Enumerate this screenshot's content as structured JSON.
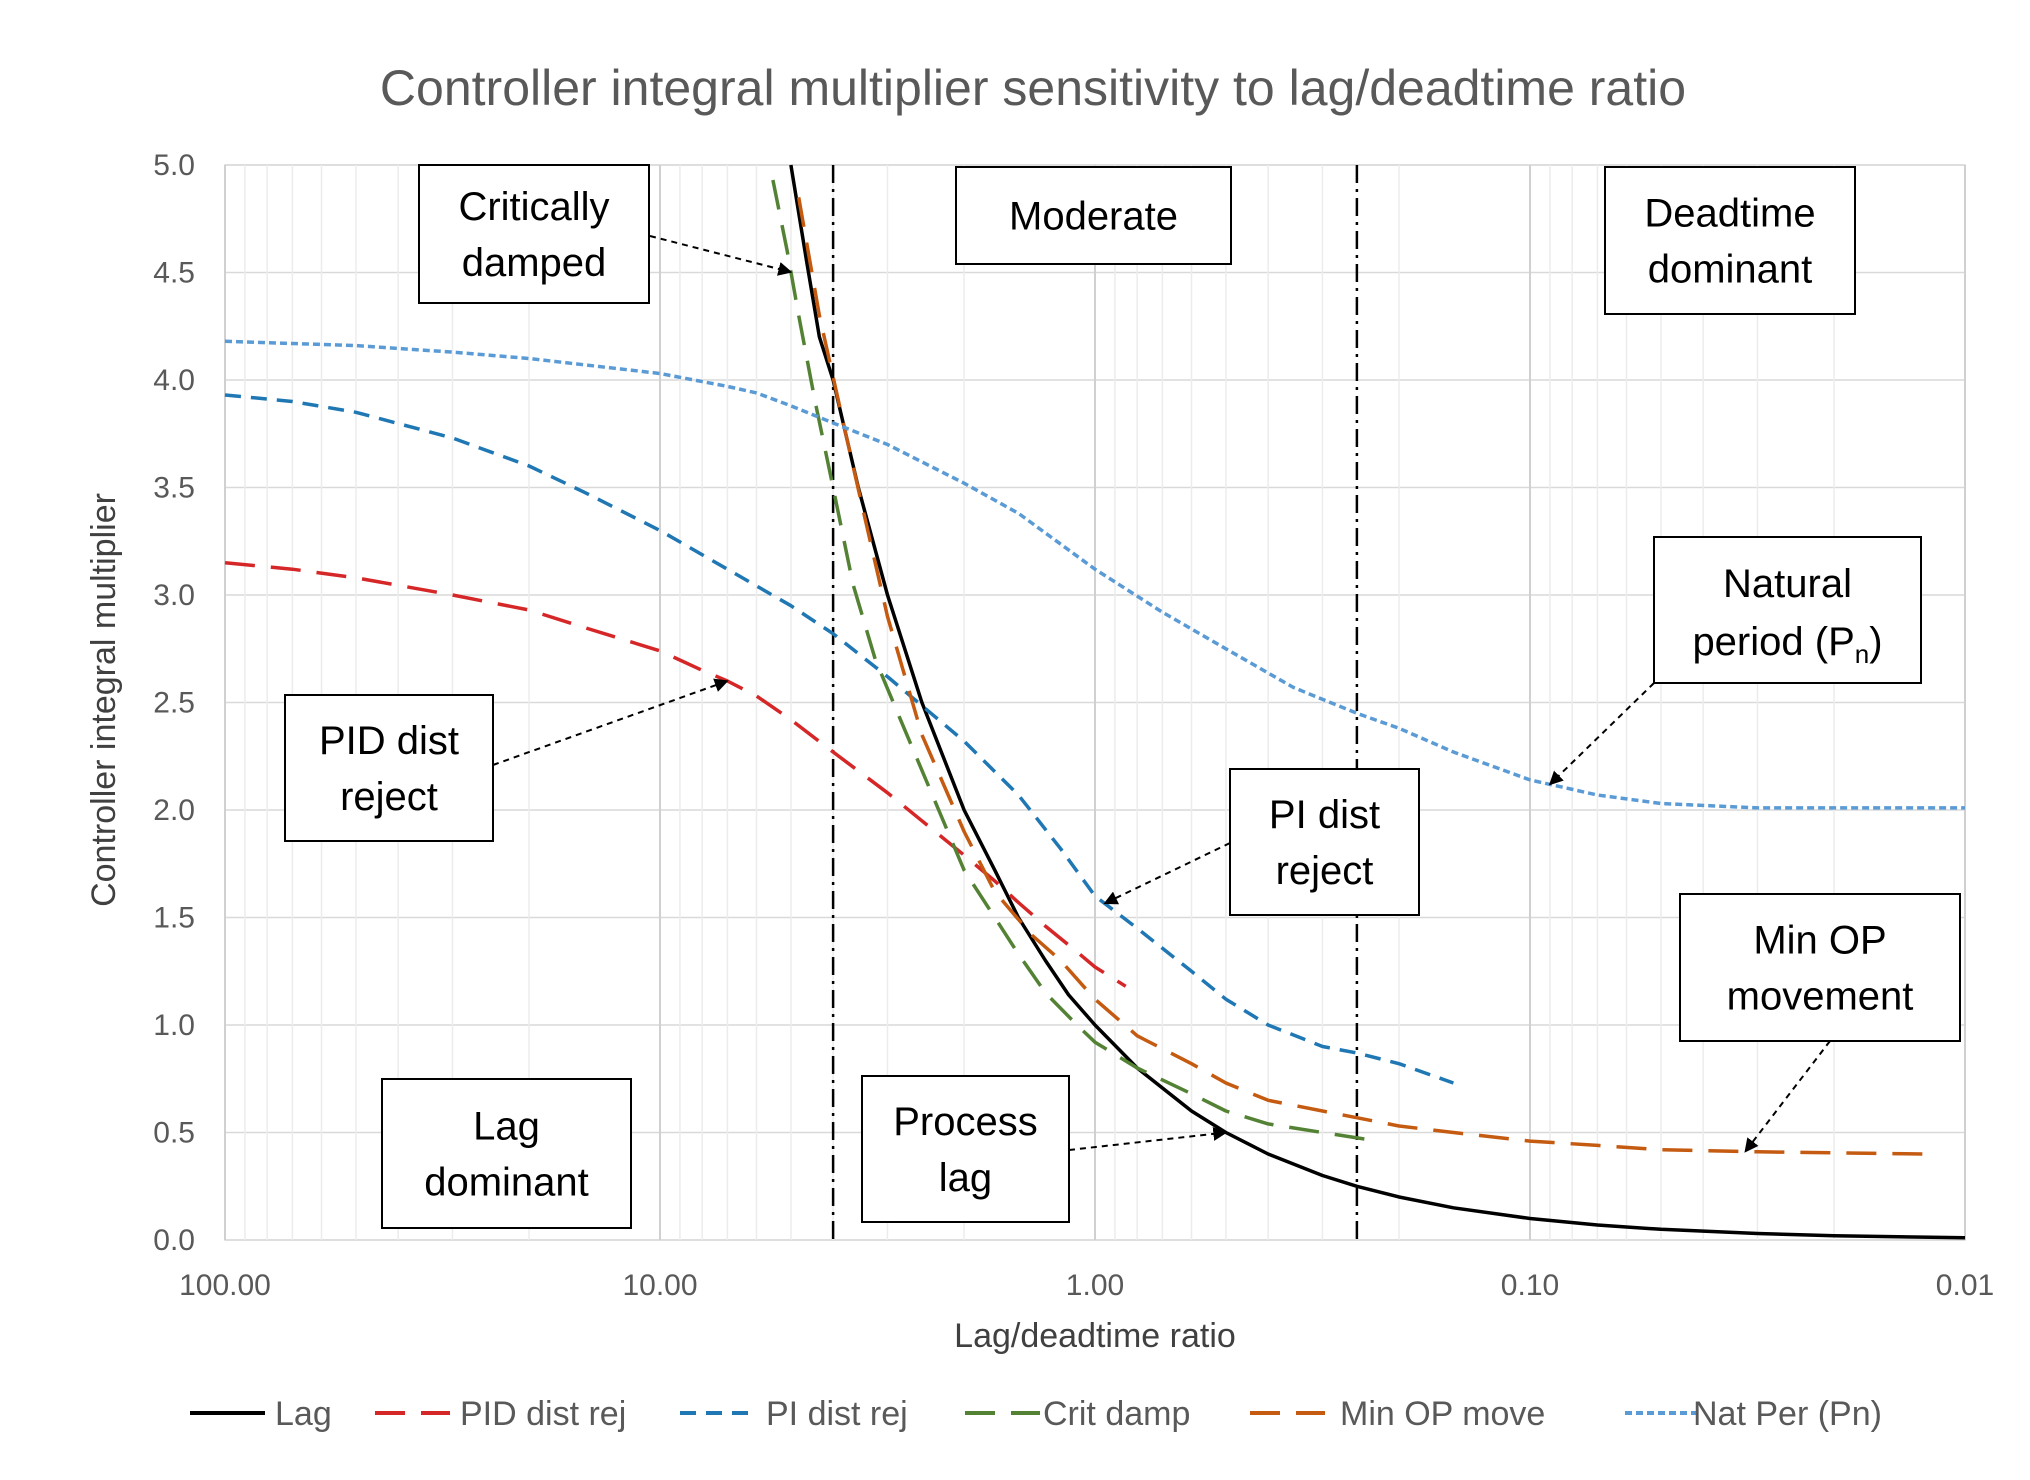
{
  "chart_data": {
    "type": "line",
    "title": "Controller integral multiplier sensitivity to lag/deadtime ratio",
    "xlabel": "Lag/deadtime ratio",
    "ylabel": "Controller integral multiplier",
    "x_scale": "log",
    "x_direction": "reversed",
    "xlim": [
      100,
      0.01
    ],
    "ylim": [
      0,
      5
    ],
    "x_ticks": [
      {
        "value": 100,
        "label": "100.00"
      },
      {
        "value": 10,
        "label": "10.00"
      },
      {
        "value": 1,
        "label": "1.00"
      },
      {
        "value": 0.1,
        "label": "0.10"
      },
      {
        "value": 0.01,
        "label": "0.01"
      }
    ],
    "y_ticks": [
      {
        "value": 0,
        "label": "0.0"
      },
      {
        "value": 0.5,
        "label": "0.5"
      },
      {
        "value": 1,
        "label": "1.0"
      },
      {
        "value": 1.5,
        "label": "1.5"
      },
      {
        "value": 2,
        "label": "2.0"
      },
      {
        "value": 2.5,
        "label": "2.5"
      },
      {
        "value": 3,
        "label": "3.0"
      },
      {
        "value": 3.5,
        "label": "3.5"
      },
      {
        "value": 4,
        "label": "4.0"
      },
      {
        "value": 4.5,
        "label": "4.5"
      },
      {
        "value": 5,
        "label": "5.0"
      }
    ],
    "grid": true,
    "legend_position": "bottom",
    "vertical_markers": [
      4.0,
      0.25
    ],
    "series": [
      {
        "name": "Lag",
        "color": "#000000",
        "dash": "solid",
        "points": [
          [
            5.0,
            5.0
          ],
          [
            4.6,
            4.55
          ],
          [
            4.3,
            4.2
          ],
          [
            4.0,
            4.0
          ],
          [
            3.5,
            3.5
          ],
          [
            3.0,
            3.0
          ],
          [
            2.5,
            2.5
          ],
          [
            2.0,
            2.0
          ],
          [
            1.7,
            1.72
          ],
          [
            1.5,
            1.5
          ],
          [
            1.3,
            1.3
          ],
          [
            1.15,
            1.14
          ],
          [
            1.0,
            1.0
          ],
          [
            0.8,
            0.8
          ],
          [
            0.6,
            0.6
          ],
          [
            0.5,
            0.5
          ],
          [
            0.4,
            0.4
          ],
          [
            0.3,
            0.3
          ],
          [
            0.25,
            0.25
          ],
          [
            0.2,
            0.2
          ],
          [
            0.15,
            0.15
          ],
          [
            0.1,
            0.1
          ],
          [
            0.07,
            0.07
          ],
          [
            0.05,
            0.05
          ],
          [
            0.03,
            0.03
          ],
          [
            0.02,
            0.02
          ],
          [
            0.01,
            0.01
          ]
        ]
      },
      {
        "name": "PID dist rej",
        "color": "#d62728",
        "dash": "long",
        "points": [
          [
            100,
            3.15
          ],
          [
            70,
            3.12
          ],
          [
            50,
            3.08
          ],
          [
            30,
            3.0
          ],
          [
            20,
            2.93
          ],
          [
            15,
            2.85
          ],
          [
            10,
            2.74
          ],
          [
            8,
            2.65
          ],
          [
            7,
            2.6
          ],
          [
            6,
            2.53
          ],
          [
            5,
            2.42
          ],
          [
            4,
            2.27
          ],
          [
            3,
            2.08
          ],
          [
            2.5,
            1.95
          ],
          [
            2,
            1.79
          ],
          [
            1.7,
            1.67
          ],
          [
            1.5,
            1.57
          ],
          [
            1.3,
            1.46
          ],
          [
            1.1,
            1.34
          ],
          [
            1.0,
            1.27
          ],
          [
            0.85,
            1.18
          ]
        ]
      },
      {
        "name": "PI dist rej",
        "color": "#1f77b4",
        "dash": "medium",
        "points": [
          [
            100,
            3.93
          ],
          [
            70,
            3.9
          ],
          [
            50,
            3.85
          ],
          [
            30,
            3.73
          ],
          [
            20,
            3.6
          ],
          [
            15,
            3.48
          ],
          [
            10,
            3.3
          ],
          [
            7,
            3.12
          ],
          [
            5,
            2.95
          ],
          [
            4,
            2.82
          ],
          [
            3,
            2.62
          ],
          [
            2,
            2.32
          ],
          [
            1.5,
            2.07
          ],
          [
            1.2,
            1.82
          ],
          [
            1.0,
            1.6
          ],
          [
            0.8,
            1.45
          ],
          [
            0.6,
            1.25
          ],
          [
            0.5,
            1.12
          ],
          [
            0.4,
            1.0
          ],
          [
            0.3,
            0.9
          ],
          [
            0.25,
            0.87
          ],
          [
            0.2,
            0.82
          ],
          [
            0.15,
            0.73
          ]
        ]
      },
      {
        "name": "Crit damp",
        "color": "#548235",
        "dash": "long",
        "points": [
          [
            5.5,
            4.93
          ],
          [
            5.1,
            4.6
          ],
          [
            4.8,
            4.3
          ],
          [
            4.4,
            3.9
          ],
          [
            4.0,
            3.5
          ],
          [
            3.6,
            3.05
          ],
          [
            3.2,
            2.7
          ],
          [
            2.8,
            2.42
          ],
          [
            2.4,
            2.1
          ],
          [
            2.0,
            1.72
          ],
          [
            1.7,
            1.5
          ],
          [
            1.5,
            1.33
          ],
          [
            1.3,
            1.15
          ],
          [
            1.1,
            1.0
          ],
          [
            1.0,
            0.92
          ],
          [
            0.8,
            0.8
          ],
          [
            0.6,
            0.68
          ],
          [
            0.5,
            0.6
          ],
          [
            0.4,
            0.54
          ],
          [
            0.3,
            0.5
          ],
          [
            0.24,
            0.47
          ]
        ]
      },
      {
        "name": "Min OP move",
        "color": "#c55a11",
        "dash": "long",
        "points": [
          [
            4.8,
            4.85
          ],
          [
            4.3,
            4.3
          ],
          [
            3.6,
            3.6
          ],
          [
            3.0,
            2.9
          ],
          [
            2.5,
            2.35
          ],
          [
            2.0,
            1.9
          ],
          [
            1.7,
            1.62
          ],
          [
            1.4,
            1.42
          ],
          [
            1.2,
            1.3
          ],
          [
            1.0,
            1.12
          ],
          [
            0.8,
            0.95
          ],
          [
            0.6,
            0.82
          ],
          [
            0.5,
            0.73
          ],
          [
            0.4,
            0.65
          ],
          [
            0.3,
            0.6
          ],
          [
            0.2,
            0.53
          ],
          [
            0.15,
            0.5
          ],
          [
            0.1,
            0.46
          ],
          [
            0.07,
            0.44
          ],
          [
            0.05,
            0.42
          ],
          [
            0.03,
            0.41
          ],
          [
            0.0125,
            0.4
          ]
        ]
      },
      {
        "name": "Nat Per (Pn)",
        "color": "#5b9bd5",
        "dash": "short",
        "points": [
          [
            100,
            4.18
          ],
          [
            70,
            4.17
          ],
          [
            50,
            4.16
          ],
          [
            30,
            4.13
          ],
          [
            20,
            4.1
          ],
          [
            10,
            4.03
          ],
          [
            7,
            3.97
          ],
          [
            6,
            3.94
          ],
          [
            5,
            3.88
          ],
          [
            4,
            3.8
          ],
          [
            3,
            3.7
          ],
          [
            2,
            3.52
          ],
          [
            1.5,
            3.38
          ],
          [
            1.0,
            3.12
          ],
          [
            0.7,
            2.92
          ],
          [
            0.5,
            2.75
          ],
          [
            0.35,
            2.57
          ],
          [
            0.25,
            2.45
          ],
          [
            0.2,
            2.38
          ],
          [
            0.15,
            2.27
          ],
          [
            0.1,
            2.14
          ],
          [
            0.07,
            2.07
          ],
          [
            0.05,
            2.03
          ],
          [
            0.03,
            2.01
          ],
          [
            0.02,
            2.01
          ],
          [
            0.01,
            2.01
          ]
        ]
      }
    ],
    "annotations": [
      {
        "id": "critically-damped",
        "lines": [
          "Critically",
          "damped"
        ],
        "target_series": "Crit damp"
      },
      {
        "id": "moderate",
        "lines": [
          "Moderate"
        ]
      },
      {
        "id": "deadtime-dominant",
        "lines": [
          "Deadtime",
          "dominant"
        ]
      },
      {
        "id": "natural-period",
        "lines": [
          "Natural",
          "period (P",
          "n",
          ")"
        ],
        "target_series": "Nat Per (Pn)"
      },
      {
        "id": "pid-dist-reject",
        "lines": [
          "PID dist",
          "reject"
        ],
        "target_series": "PID dist rej"
      },
      {
        "id": "pi-dist-reject",
        "lines": [
          "PI dist",
          "reject"
        ],
        "target_series": "PI dist rej"
      },
      {
        "id": "min-op-movement",
        "lines": [
          "Min OP",
          "movement"
        ],
        "target_series": "Min OP move"
      },
      {
        "id": "lag-dominant",
        "lines": [
          "Lag",
          "dominant"
        ]
      },
      {
        "id": "process-lag",
        "lines": [
          "Process",
          "lag"
        ],
        "target_series": "Lag"
      }
    ]
  }
}
